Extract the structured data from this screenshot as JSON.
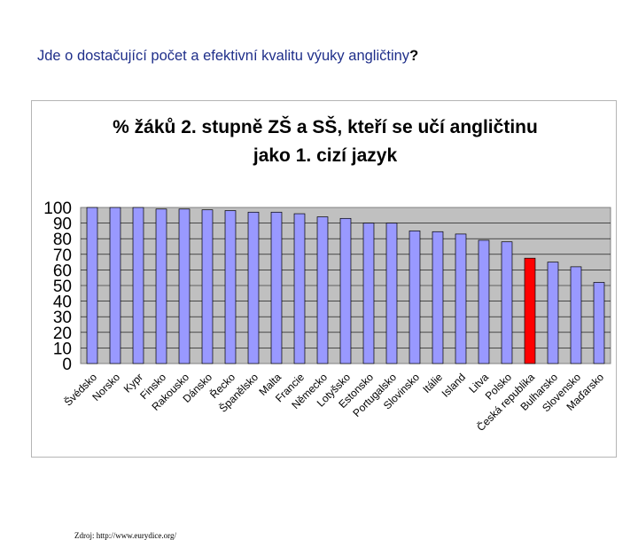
{
  "slide": {
    "title": "Jde o dostačující počet a efektivní kvalitu výuky angličtiny",
    "title_suffix": "?"
  },
  "source_note": "Zdroj: http://www.eurydice.org/",
  "colors": {
    "bar": "#9999ff",
    "highlight_bar": "#ff0000",
    "plot_background": "#c0c0c0",
    "title_text": "#1f2f8a"
  },
  "chart_data": {
    "type": "bar",
    "title_lines": [
      "%  žáků 2. stupně ZŠ a SŠ, kteří se učí angličtinu",
      "jako 1. cizí jazyk"
    ],
    "xlabel": "",
    "ylabel": "",
    "ylim": [
      0,
      100
    ],
    "yticks": [
      0,
      10,
      20,
      30,
      40,
      50,
      60,
      70,
      80,
      90,
      100
    ],
    "grid": true,
    "highlight_category": "Česká republika",
    "categories": [
      "Švédsko",
      "Norsko",
      "Kypr",
      "Finsko",
      "Rakousko",
      "Dánsko",
      "Řecko",
      "Španělsko",
      "Malta",
      "Francie",
      "Německo",
      "Lotyšsko",
      "Estonsko",
      "Portugalsko",
      "Slovinsko",
      "Itálie",
      "Island",
      "Litva",
      "Polsko",
      "Česká republika",
      "Bulharsko",
      "Slovensko",
      "Maďarsko"
    ],
    "values": [
      100,
      100,
      100,
      99,
      99,
      98.5,
      98,
      97,
      97,
      96,
      94,
      93,
      90,
      90,
      85,
      84.5,
      83,
      79,
      78,
      67.5,
      65,
      62,
      52
    ]
  }
}
